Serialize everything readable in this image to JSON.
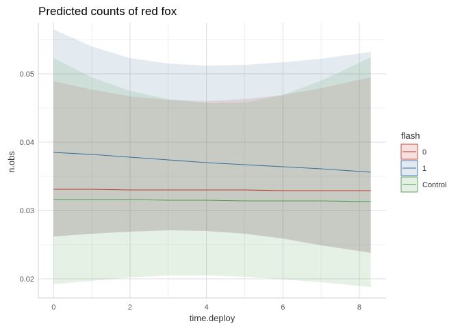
{
  "chart_data": {
    "type": "line",
    "title": "Predicted counts of red fox",
    "xlabel": "time.deploy",
    "ylabel": "n.obs",
    "xlim": [
      -0.4,
      8.7
    ],
    "ylim": [
      0.0172,
      0.0575
    ],
    "xticks": [
      0,
      2,
      4,
      6,
      8
    ],
    "yticks": [
      0.02,
      0.03,
      0.04,
      0.05
    ],
    "ytick_labels": [
      "0.02",
      "0.03",
      "0.04",
      "0.05"
    ],
    "grid": true,
    "legend": {
      "title": "flash",
      "placement": "right"
    },
    "series": [
      {
        "name": "0",
        "color": "#c0392b",
        "x": [
          0,
          1,
          2,
          3,
          4,
          5,
          6,
          7,
          8.3
        ],
        "y": [
          0.0331,
          0.0331,
          0.033,
          0.033,
          0.033,
          0.033,
          0.0329,
          0.0329,
          0.0329
        ],
        "lower": [
          0.0262,
          0.0266,
          0.0269,
          0.0271,
          0.027,
          0.0266,
          0.0259,
          0.0249,
          0.0238
        ],
        "upper": [
          0.0489,
          0.0477,
          0.0467,
          0.0462,
          0.046,
          0.0463,
          0.0469,
          0.0479,
          0.0495
        ]
      },
      {
        "name": "1",
        "color": "#3a6f9f",
        "x": [
          0,
          1,
          2,
          3,
          4,
          5,
          6,
          7,
          8.3
        ],
        "y": [
          0.0385,
          0.0382,
          0.0378,
          0.0374,
          0.037,
          0.0367,
          0.0364,
          0.0361,
          0.0356
        ],
        "lower": [
          0.0262,
          0.0266,
          0.0269,
          0.0271,
          0.027,
          0.0266,
          0.0259,
          0.0249,
          0.0238
        ],
        "upper": [
          0.0565,
          0.054,
          0.0523,
          0.0515,
          0.0512,
          0.0513,
          0.0517,
          0.0522,
          0.0532
        ]
      },
      {
        "name": "Control",
        "color": "#4e9a4e",
        "x": [
          0,
          1,
          2,
          3,
          4,
          5,
          6,
          7,
          8.3
        ],
        "y": [
          0.0316,
          0.0316,
          0.0316,
          0.0315,
          0.0315,
          0.0314,
          0.0314,
          0.0314,
          0.0313
        ],
        "lower": [
          0.0192,
          0.0197,
          0.0202,
          0.0205,
          0.0205,
          0.0203,
          0.0199,
          0.0195,
          0.0188
        ],
        "upper": [
          0.0523,
          0.0495,
          0.0475,
          0.0463,
          0.0457,
          0.0458,
          0.0469,
          0.049,
          0.0524
        ]
      }
    ]
  }
}
